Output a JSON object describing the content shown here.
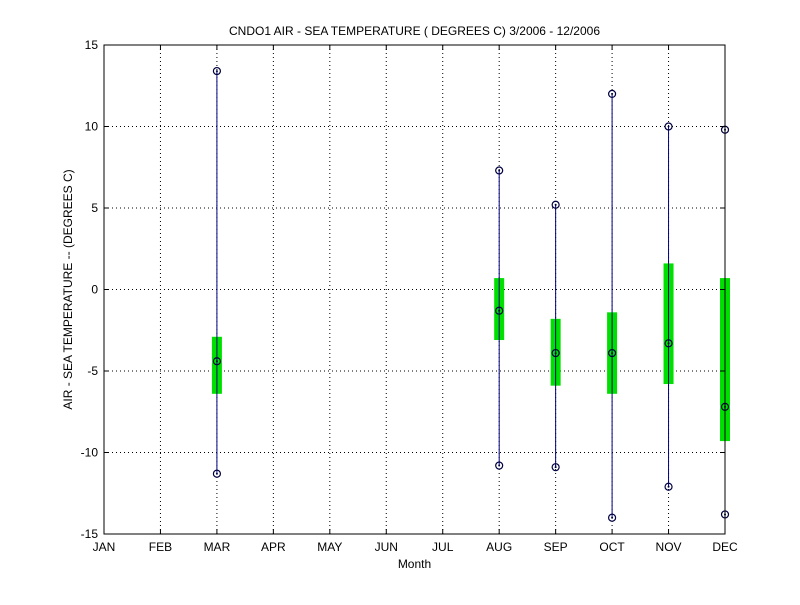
{
  "chart_data": {
    "type": "boxplot",
    "title": "CNDO1  AIR - SEA TEMPERATURE ( DEGREES C) 3/2006 - 12/2006",
    "xlabel": "Month",
    "ylabel": "AIR - SEA TEMPERATURE -- (DEGREES C)",
    "categories": [
      "JAN",
      "FEB",
      "MAR",
      "APR",
      "MAY",
      "JUN",
      "JUL",
      "AUG",
      "SEP",
      "OCT",
      "NOV",
      "DEC"
    ],
    "ylim": [
      -15,
      15
    ],
    "yticks": [
      -15,
      -10,
      -5,
      0,
      5,
      10,
      15
    ],
    "grid": true,
    "colors": {
      "whisker": "#000080",
      "box": "#00e000",
      "marker": "#000040"
    },
    "series": [
      {
        "category": "MAR",
        "min": -11.3,
        "q1": -6.4,
        "median": -4.4,
        "q3": -2.9,
        "max": 13.4
      },
      {
        "category": "AUG",
        "min": -10.8,
        "q1": -3.1,
        "median": -1.3,
        "q3": 0.7,
        "max": 7.3
      },
      {
        "category": "SEP",
        "min": -10.9,
        "q1": -5.9,
        "median": -3.9,
        "q3": -1.8,
        "max": 5.2
      },
      {
        "category": "OCT",
        "min": -14.0,
        "q1": -6.4,
        "median": -3.9,
        "q3": -1.4,
        "max": 12.0
      },
      {
        "category": "NOV",
        "min": -12.1,
        "q1": -5.8,
        "median": -3.3,
        "q3": 1.6,
        "max": 10.0
      },
      {
        "category": "DEC",
        "min": -13.8,
        "q1": -9.3,
        "median": -7.2,
        "q3": 0.7,
        "max": 9.8
      }
    ]
  }
}
